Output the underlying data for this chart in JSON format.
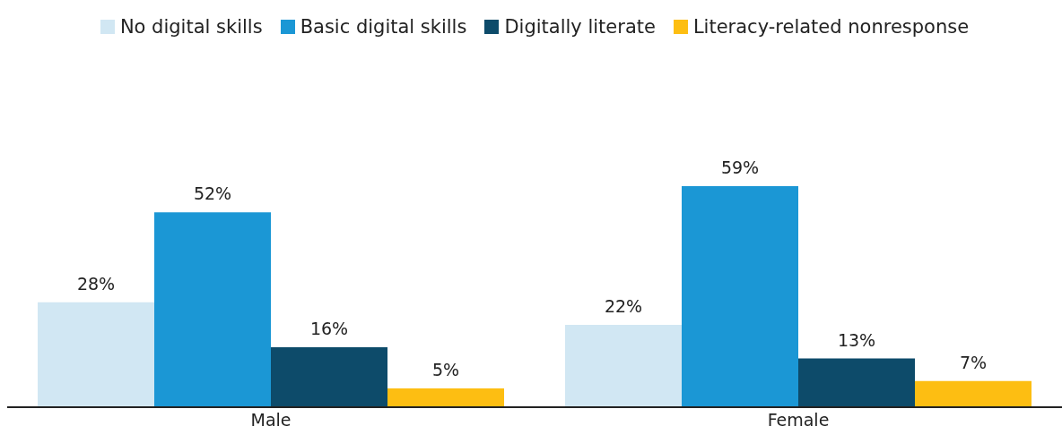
{
  "chart_data": {
    "type": "bar",
    "categories": [
      "Male",
      "Female"
    ],
    "series": [
      {
        "name": "No digital skills",
        "color": "#d1e7f3",
        "values": [
          28,
          22
        ],
        "value_labels": [
          "28%",
          "22%"
        ]
      },
      {
        "name": "Basic digital skills",
        "color": "#1b97d5",
        "values": [
          52,
          59
        ],
        "value_labels": [
          "52%",
          "59%"
        ]
      },
      {
        "name": "Digitally literate",
        "color": "#0d4b6a",
        "values": [
          16,
          13
        ],
        "value_labels": [
          "16%",
          "13%"
        ]
      },
      {
        "name": "Literacy-related nonresponse",
        "color": "#fdbe12",
        "values": [
          5,
          7
        ],
        "value_labels": [
          "5%",
          "7%"
        ]
      }
    ],
    "legend": "top",
    "grid": false,
    "tick_labels": "x"
  }
}
